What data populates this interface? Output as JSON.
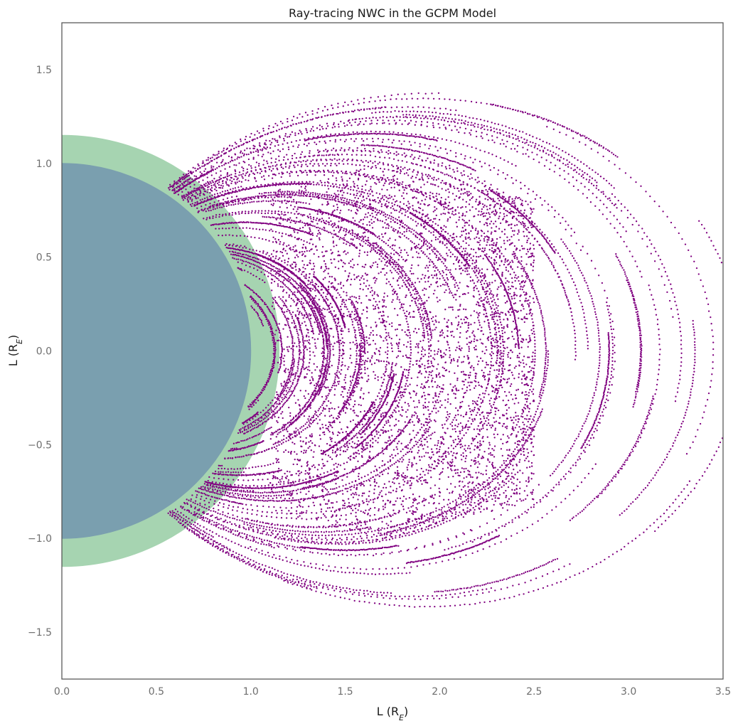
{
  "chart_data": {
    "type": "scatter",
    "title": "Ray-tracing NWC in the GCPM Model",
    "xlabel": {
      "base": "L (R",
      "sub": "E",
      "end": ")"
    },
    "ylabel": {
      "base": "L (R",
      "sub": "E",
      "end": ")"
    },
    "xlim": [
      0.0,
      3.5
    ],
    "ylim": [
      -1.75,
      1.75
    ],
    "xticks": [
      0.0,
      0.5,
      1.0,
      1.5,
      2.0,
      2.5,
      3.0,
      3.5
    ],
    "xtick_labels": [
      "0.0",
      "0.5",
      "1.0",
      "1.5",
      "2.0",
      "2.5",
      "3.0",
      "3.5"
    ],
    "yticks": [
      -1.5,
      -1.0,
      -0.5,
      0.0,
      0.5,
      1.0,
      1.5
    ],
    "ytick_labels": [
      "−1.5",
      "−1.0",
      "−0.5",
      "0.0",
      "0.5",
      "1.0",
      "1.5"
    ],
    "grid": false,
    "legend": "none",
    "shapes": [
      {
        "kind": "circle",
        "center": [
          0,
          0
        ],
        "radius": 1.15,
        "color": "#a6d4b1",
        "opacity": 1.0
      },
      {
        "kind": "circle",
        "center": [
          0,
          0
        ],
        "radius": 1.0,
        "color": "#7a9faf",
        "opacity": 1.0
      }
    ],
    "series": [
      {
        "marker_color": "#800080",
        "distribution": {
          "dense_core": {
            "x_range": [
              1.1,
              2.5
            ],
            "y_range": [
              -1.0,
              1.0
            ]
          },
          "field_line_arcs": {
            "L_shell_range": [
              1.05,
              3.6
            ],
            "x_extent": [
              0.35,
              3.5
            ],
            "y_extent": [
              -1.75,
              1.75
            ]
          }
        }
      }
    ]
  }
}
